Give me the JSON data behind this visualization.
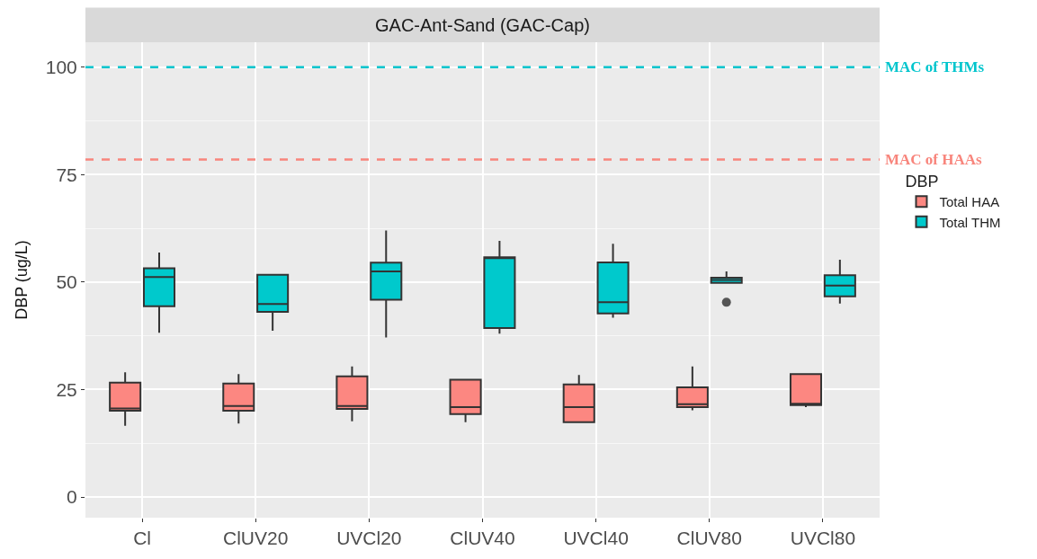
{
  "chart_data": {
    "type": "box",
    "title": "GAC-Ant-Sand (GAC-Cap)",
    "ylabel": "DBP (ug/L)",
    "legend_title": "DBP",
    "categories": [
      "Cl",
      "ClUV20",
      "UVCl20",
      "ClUV40",
      "UVCl40",
      "ClUV80",
      "UVCl80"
    ],
    "series": [
      {
        "name": "Total HAA",
        "color": "#fc8781",
        "boxes": [
          {
            "low": 16.6,
            "q1": 20.1,
            "median": 20.6,
            "q3": 26.6,
            "high": 29.0
          },
          {
            "low": 17.1,
            "q1": 20.1,
            "median": 21.2,
            "q3": 26.4,
            "high": 28.6
          },
          {
            "low": 17.6,
            "q1": 20.5,
            "median": 21.2,
            "q3": 28.1,
            "high": 30.4
          },
          {
            "low": 17.4,
            "q1": 19.3,
            "median": 20.9,
            "q3": 27.3,
            "high": 27.3
          },
          {
            "low": 17.4,
            "q1": 17.4,
            "median": 20.9,
            "q3": 26.2,
            "high": 28.4
          },
          {
            "low": 20.2,
            "q1": 20.9,
            "median": 21.6,
            "q3": 25.5,
            "high": 30.4
          },
          {
            "low": 20.9,
            "q1": 21.4,
            "median": 21.7,
            "q3": 28.6,
            "high": 28.6
          }
        ]
      },
      {
        "name": "Total THM",
        "color": "#00c9cc",
        "boxes": [
          {
            "low": 38.2,
            "q1": 44.4,
            "median": 51.2,
            "q3": 53.2,
            "high": 56.9
          },
          {
            "low": 38.7,
            "q1": 43.1,
            "median": 44.9,
            "q3": 51.7,
            "high": 51.7
          },
          {
            "low": 37.1,
            "q1": 45.9,
            "median": 52.5,
            "q3": 54.5,
            "high": 62.0
          },
          {
            "low": 38.0,
            "q1": 39.3,
            "median": 55.6,
            "q3": 55.8,
            "high": 59.6
          },
          {
            "low": 41.7,
            "q1": 42.7,
            "median": 45.3,
            "q3": 54.6,
            "high": 58.9
          },
          {
            "low": 49.8,
            "q1": 49.8,
            "median": 50.5,
            "q3": 51.0,
            "high": 52.5,
            "outliers": [
              45.3
            ]
          },
          {
            "low": 45.0,
            "q1": 46.7,
            "median": 49.2,
            "q3": 51.6,
            "high": 55.2
          }
        ]
      }
    ],
    "ylim": [
      -4.8,
      105.8
    ],
    "yticks": [
      0,
      25,
      50,
      75,
      100
    ],
    "grid": true,
    "legend": "right",
    "ref_lines": [
      {
        "axis": "y",
        "value": 100,
        "label": "MAC of THMs",
        "color": "#00c5cd",
        "line_style": "dashed"
      },
      {
        "axis": "y",
        "value": 78.5,
        "label": "MAC of HAAs",
        "color": "#f8857c",
        "line_style": "dashed"
      }
    ]
  }
}
